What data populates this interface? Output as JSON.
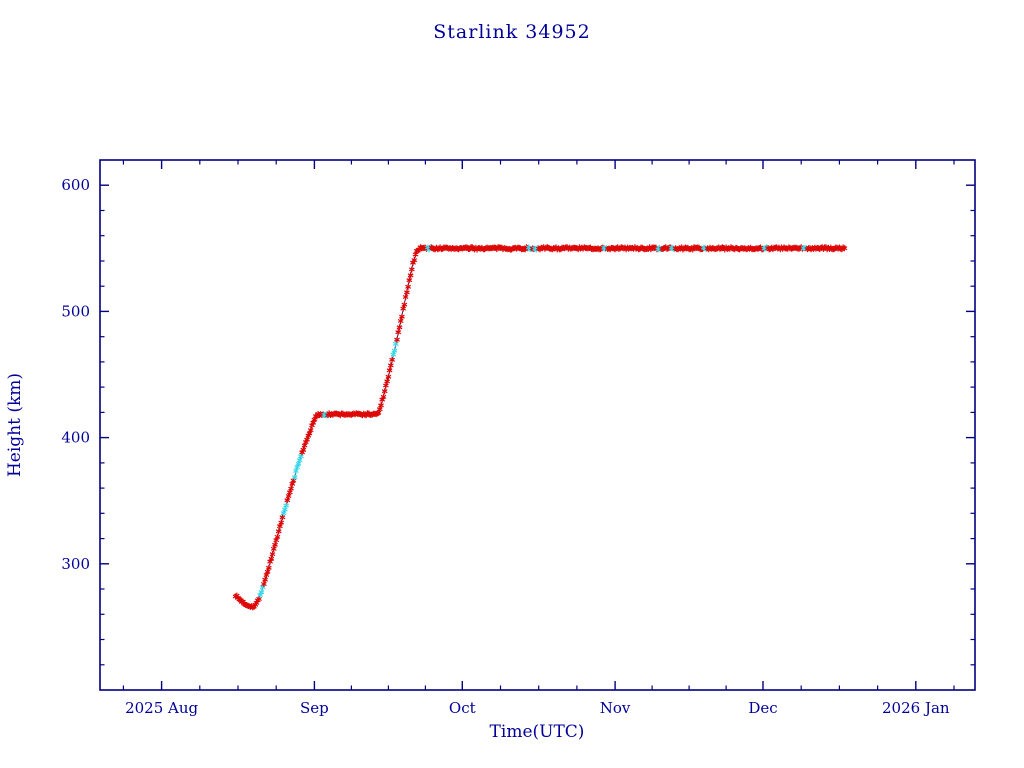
{
  "chart_data": {
    "type": "scatter",
    "title": "Starlink 34952",
    "xlabel": "Time(UTC)",
    "ylabel": "Height (km)",
    "x_unit": "days since 2025-08-01",
    "xlim": [
      -12.5,
      165
    ],
    "ylim": [
      200,
      620
    ],
    "x_major_ticks": [
      {
        "day": 0,
        "label": "2025 Aug"
      },
      {
        "day": 31,
        "label": "Sep"
      },
      {
        "day": 61,
        "label": "Oct"
      },
      {
        "day": 92,
        "label": "Nov"
      },
      {
        "day": 122,
        "label": "Dec"
      },
      {
        "day": 153,
        "label": "2026 Jan"
      }
    ],
    "x_minor_divisions": 4,
    "y_major_ticks": [
      300,
      400,
      500,
      600
    ],
    "y_minor_step": 20,
    "legend": "none",
    "grid": false,
    "control_points": [
      [
        15.0,
        275
      ],
      [
        15.6,
        272.5
      ],
      [
        16.2,
        270.5
      ],
      [
        17.0,
        268
      ],
      [
        18.0,
        266.5
      ],
      [
        18.8,
        266
      ],
      [
        19.6,
        271
      ],
      [
        20.5,
        281
      ],
      [
        21.5,
        294
      ],
      [
        22.5,
        308
      ],
      [
        23.5,
        322
      ],
      [
        24.5,
        336
      ],
      [
        25.5,
        350
      ],
      [
        26.5,
        363
      ],
      [
        27.5,
        376
      ],
      [
        28.5,
        388
      ],
      [
        29.5,
        399
      ],
      [
        30.5,
        409
      ],
      [
        31.2,
        416
      ],
      [
        31.8,
        418.5
      ],
      [
        43.8,
        418.5
      ],
      [
        44.4,
        424
      ],
      [
        45.4,
        439
      ],
      [
        46.4,
        455
      ],
      [
        47.4,
        472
      ],
      [
        48.4,
        490
      ],
      [
        49.4,
        509
      ],
      [
        50.2,
        524
      ],
      [
        51.0,
        538
      ],
      [
        51.7,
        547
      ],
      [
        52.4,
        550.5
      ],
      [
        53.2,
        550
      ],
      [
        138.5,
        550
      ]
    ],
    "sample_step_days": 0.25,
    "noise_km": 0.9,
    "cyan_fraction": 0.035,
    "colors": {
      "frame": "#000080",
      "text": "#000099",
      "marker": "#dd0808",
      "alt_marker": "#3fd9e9",
      "line": "#22227f",
      "background": "#ffffff"
    }
  }
}
